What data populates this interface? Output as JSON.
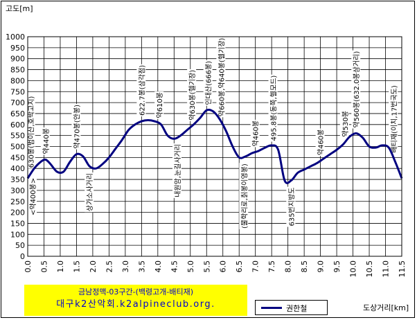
{
  "chart_data": {
    "type": "line",
    "title": "",
    "ylabel": "고도[m]",
    "xlabel": "도상거리[km]",
    "ylim": [
      0,
      1000
    ],
    "xlim": [
      0,
      11.5
    ],
    "yticks": [
      0,
      50,
      100,
      150,
      200,
      250,
      300,
      350,
      400,
      450,
      500,
      550,
      600,
      650,
      700,
      750,
      800,
      850,
      900,
      950,
      1000
    ],
    "xticks": [
      "0.0",
      "0.5",
      "1.0",
      "1.5",
      "2.0",
      "2.5",
      "3.0",
      "3.5",
      "4.0",
      "4.5",
      "5.0",
      "5.5",
      "6.0",
      "6.5",
      "7.0",
      "7.5",
      "8.0",
      "8.5",
      "9.0",
      "9.5",
      "10.0",
      "10.5",
      "11.0",
      "11.5"
    ],
    "grid": true,
    "legend_position": "bottom-right",
    "series": [
      {
        "name": "권한철",
        "color": "#000080",
        "x": [
          0.0,
          0.2,
          0.4,
          0.55,
          0.7,
          0.9,
          1.1,
          1.3,
          1.5,
          1.7,
          1.9,
          2.1,
          2.3,
          2.5,
          2.7,
          2.9,
          3.1,
          3.3,
          3.5,
          3.7,
          3.9,
          4.1,
          4.3,
          4.5,
          4.7,
          4.9,
          5.1,
          5.3,
          5.5,
          5.7,
          5.9,
          6.1,
          6.3,
          6.5,
          6.7,
          6.9,
          7.1,
          7.3,
          7.5,
          7.7,
          7.9,
          8.1,
          8.3,
          8.5,
          8.7,
          8.9,
          9.1,
          9.3,
          9.5,
          9.7,
          9.9,
          10.1,
          10.3,
          10.5,
          10.7,
          10.9,
          11.1,
          11.3,
          11.5
        ],
        "y": [
          355,
          400,
          430,
          440,
          420,
          385,
          385,
          430,
          465,
          455,
          410,
          400,
          420,
          450,
          490,
          530,
          575,
          600,
          615,
          620,
          615,
          600,
          550,
          535,
          550,
          575,
          600,
          630,
          665,
          660,
          625,
          570,
          500,
          450,
          455,
          470,
          480,
          495,
          505,
          485,
          345,
          345,
          380,
          395,
          410,
          425,
          445,
          465,
          485,
          510,
          545,
          560,
          540,
          500,
          495,
          505,
          495,
          430,
          355
        ]
      }
    ],
    "annotations_up": [
      {
        "x": 0.1,
        "text": "630봉(범이산,호박고지)"
      },
      {
        "x": 0.55,
        "text": "약440봉"
      },
      {
        "x": 1.5,
        "text": "약470봉(안봉)"
      },
      {
        "x": 3.5,
        "text": "622.7봉(삼각점)"
      },
      {
        "x": 4.05,
        "text": "약610봉"
      },
      {
        "x": 5.05,
        "text": "약630봉(헬기장)"
      },
      {
        "x": 5.55,
        "text": "인대산(666봉)"
      },
      {
        "x": 5.95,
        "text": "약660봉,약640봉(헬기장)"
      },
      {
        "x": 7.0,
        "text": "약460봉"
      },
      {
        "x": 7.55,
        "text": "495.8봉(동쪽,헬모드)"
      },
      {
        "x": 9.0,
        "text": "약460봉"
      },
      {
        "x": 9.75,
        "text": "약530봉"
      },
      {
        "x": 10.1,
        "text": "약560봉(632.0봉삼거리)"
      },
      {
        "x": 11.25,
        "text": "배티재(이치,17번국도)"
      }
    ],
    "annotations_down": [
      {
        "x": 0.15,
        "text": "<약400봉>"
      },
      {
        "x": 1.9,
        "text": "상가소사거리"
      },
      {
        "x": 4.6,
        "text": "내원암,눈길사거리"
      },
      {
        "x": 6.65,
        "text": "(물학리로,칡봉이영봉)"
      },
      {
        "x": 8.1,
        "text": "635번지방도"
      }
    ]
  },
  "caption": {
    "line1": "금남정맥-03구간-(백령고개-배티재)",
    "line2": "대구k2산악회.k2alpineclub.org."
  }
}
